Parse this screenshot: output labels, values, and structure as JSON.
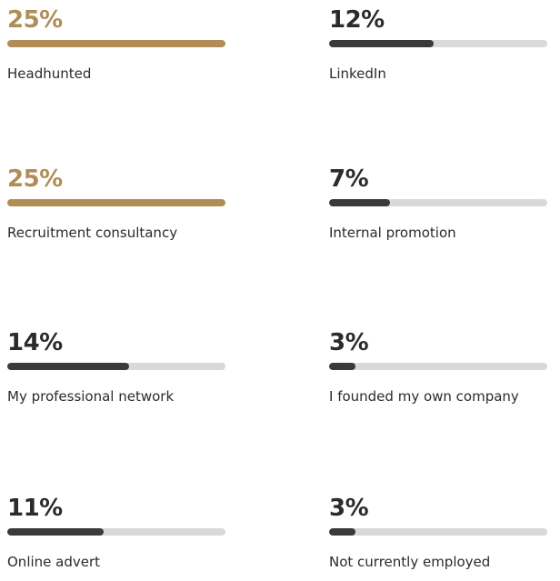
{
  "colors": {
    "highlight": "#b08d57",
    "bar_dark": "#3a3a3a",
    "text_dark": "#2b2b2b",
    "track": "#d9d9d9"
  },
  "chart_data": {
    "type": "bar",
    "scale_max_percent": 25,
    "items": [
      {
        "label": "Headhunted",
        "value_text": "25%",
        "value": 25,
        "highlight": true
      },
      {
        "label": "LinkedIn",
        "value_text": "12%",
        "value": 12,
        "highlight": false
      },
      {
        "label": "Recruitment consultancy",
        "value_text": "25%",
        "value": 25,
        "highlight": true
      },
      {
        "label": "Internal promotion",
        "value_text": "7%",
        "value": 7,
        "highlight": false
      },
      {
        "label": "My professional network",
        "value_text": "14%",
        "value": 14,
        "highlight": false
      },
      {
        "label": "I founded my own company",
        "value_text": "3%",
        "value": 3,
        "highlight": false
      },
      {
        "label": "Online advert",
        "value_text": "11%",
        "value": 11,
        "highlight": false
      },
      {
        "label": "Not currently employed",
        "value_text": "3%",
        "value": 3,
        "highlight": false
      }
    ]
  }
}
